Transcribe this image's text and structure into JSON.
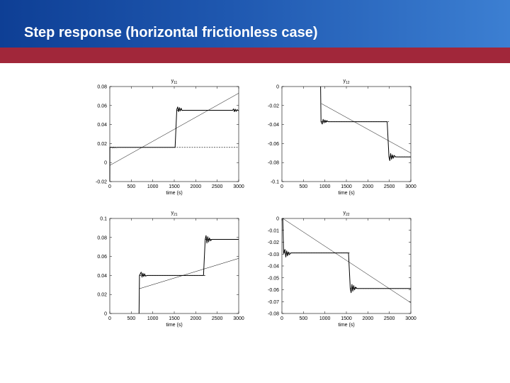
{
  "slide": {
    "title": "Step response (horizontal frictionless case)",
    "colors": {
      "header_blue": "#1f58b0",
      "header_stripe": "#a1273a"
    }
  },
  "chart_data": [
    {
      "type": "line",
      "title_main": "y",
      "title_sub": "11",
      "xlabel": "time (s)",
      "xlim": [
        0,
        3000
      ],
      "ylim": [
        -0.02,
        0.08
      ],
      "xticks": [
        "0",
        "500",
        "1000",
        "1500",
        "2000",
        "2500",
        "3000"
      ],
      "yticks": [
        "-0.02",
        "0",
        "0.02",
        "0.04",
        "0.06",
        "0.08"
      ],
      "ytick_values": [
        -0.02,
        0,
        0.02,
        0.04,
        0.06,
        0.08
      ],
      "grid": false,
      "series": [
        {
          "style": "solid",
          "x": [
            0,
            1,
            40,
            60,
            80,
            100,
            120,
            140,
            180,
            1520,
            1560,
            1580,
            1600,
            1620,
            1640,
            1660,
            1680,
            1720,
            2860,
            2880,
            2900,
            2920,
            2940,
            2960,
            3000
          ],
          "y": [
            -0.02,
            0.016,
            0.0162,
            0.0156,
            0.0163,
            0.0157,
            0.0162,
            0.0158,
            0.016,
            0.016,
            0.056,
            0.0585,
            0.0535,
            0.0578,
            0.0543,
            0.0572,
            0.0548,
            0.055,
            0.055,
            0.0565,
            0.0535,
            0.0562,
            0.0538,
            0.0556,
            0.0545
          ]
        },
        {
          "style": "dashed",
          "x": [
            0,
            1560,
            3000
          ],
          "y": [
            0.016,
            0.016,
            0.016
          ]
        },
        {
          "style": "dashed",
          "x": [
            1560,
            3000
          ],
          "y": [
            0.055,
            0.055
          ]
        },
        {
          "style": "thin",
          "x": [
            0,
            3000
          ],
          "y": [
            -0.003,
            0.073
          ]
        }
      ]
    },
    {
      "type": "line",
      "title_main": "y",
      "title_sub": "12",
      "xlabel": "time (s)",
      "xlim": [
        0,
        3000
      ],
      "ylim": [
        -0.1,
        0
      ],
      "xticks": [
        "0",
        "500",
        "1000",
        "1500",
        "2000",
        "2500",
        "3000"
      ],
      "yticks": [
        "-0.1",
        "-0.08",
        "-0.06",
        "-0.04",
        "-0.02",
        "0"
      ],
      "ytick_values": [
        -0.1,
        -0.08,
        -0.06,
        -0.04,
        -0.02,
        0
      ],
      "grid": false,
      "series": [
        {
          "style": "solid",
          "x": [
            900,
            910,
            940,
            960,
            980,
            1000,
            1020,
            1040,
            1080,
            2450,
            2490,
            2510,
            2530,
            2550,
            2570,
            2590,
            2610,
            2650,
            3000
          ],
          "y": [
            0,
            -0.037,
            -0.0395,
            -0.0345,
            -0.0382,
            -0.0352,
            -0.0378,
            -0.0358,
            -0.037,
            -0.037,
            -0.074,
            -0.078,
            -0.0705,
            -0.0765,
            -0.0718,
            -0.0755,
            -0.0725,
            -0.074,
            -0.074
          ]
        },
        {
          "style": "dashed",
          "x": [
            910,
            2490
          ],
          "y": [
            -0.037,
            -0.037
          ]
        },
        {
          "style": "dashed",
          "x": [
            2490,
            3000
          ],
          "y": [
            -0.074,
            -0.074
          ]
        },
        {
          "style": "thin",
          "x": [
            920,
            3000
          ],
          "y": [
            -0.018,
            -0.07
          ]
        }
      ]
    },
    {
      "type": "line",
      "title_main": "y",
      "title_sub": "21",
      "xlabel": "time (s)",
      "xlim": [
        0,
        3000
      ],
      "ylim": [
        0,
        0.1
      ],
      "xticks": [
        "0",
        "500",
        "1000",
        "1500",
        "2000",
        "2500",
        "3000"
      ],
      "yticks": [
        "0",
        "0.02",
        "0.04",
        "0.06",
        "0.08",
        "0.1"
      ],
      "ytick_values": [
        0,
        0.02,
        0.04,
        0.06,
        0.08,
        0.1
      ],
      "grid": false,
      "series": [
        {
          "style": "solid",
          "x": [
            680,
            690,
            730,
            750,
            770,
            790,
            810,
            830,
            870,
            2180,
            2220,
            2240,
            2260,
            2280,
            2300,
            2320,
            2340,
            2380,
            3000
          ],
          "y": [
            0,
            0.04,
            0.0435,
            0.0382,
            0.0425,
            0.0388,
            0.0418,
            0.0393,
            0.04,
            0.04,
            0.078,
            0.082,
            0.074,
            0.0808,
            0.0752,
            0.0795,
            0.0765,
            0.078,
            0.078
          ]
        },
        {
          "style": "dashed",
          "x": [
            690,
            2220
          ],
          "y": [
            0.04,
            0.04
          ]
        },
        {
          "style": "dashed",
          "x": [
            2220,
            3000
          ],
          "y": [
            0.078,
            0.078
          ]
        },
        {
          "style": "thin",
          "x": [
            680,
            3000
          ],
          "y": [
            0.026,
            0.058
          ]
        }
      ]
    },
    {
      "type": "line",
      "title_main": "y",
      "title_sub": "22",
      "xlabel": "time (s)",
      "xlim": [
        0,
        3000
      ],
      "ylim": [
        -0.08,
        0
      ],
      "xticks": [
        "0",
        "500",
        "1000",
        "1500",
        "2000",
        "2500",
        "3000"
      ],
      "yticks": [
        "-0.08",
        "-0.07",
        "-0.06",
        "-0.05",
        "-0.04",
        "-0.03",
        "-0.02",
        "-0.01",
        "0"
      ],
      "ytick_values": [
        -0.08,
        -0.07,
        -0.06,
        -0.05,
        -0.04,
        -0.03,
        -0.02,
        -0.01,
        0
      ],
      "grid": false,
      "series": [
        {
          "style": "solid",
          "x": [
            20,
            40,
            70,
            90,
            110,
            130,
            150,
            170,
            210,
            1550,
            1590,
            1610,
            1630,
            1650,
            1670,
            1690,
            1710,
            1750,
            3000
          ],
          "y": [
            0,
            -0.0295,
            -0.026,
            -0.0325,
            -0.0272,
            -0.0315,
            -0.0282,
            -0.0305,
            -0.029,
            -0.029,
            -0.059,
            -0.0625,
            -0.0555,
            -0.0612,
            -0.0565,
            -0.0602,
            -0.0578,
            -0.059,
            -0.059
          ]
        },
        {
          "style": "dashed",
          "x": [
            40,
            1590
          ],
          "y": [
            -0.029,
            -0.029
          ]
        },
        {
          "style": "dashed",
          "x": [
            1590,
            3000
          ],
          "y": [
            -0.059,
            -0.059
          ]
        },
        {
          "style": "thin",
          "x": [
            20,
            3000
          ],
          "y": [
            0,
            -0.071
          ]
        }
      ]
    }
  ]
}
